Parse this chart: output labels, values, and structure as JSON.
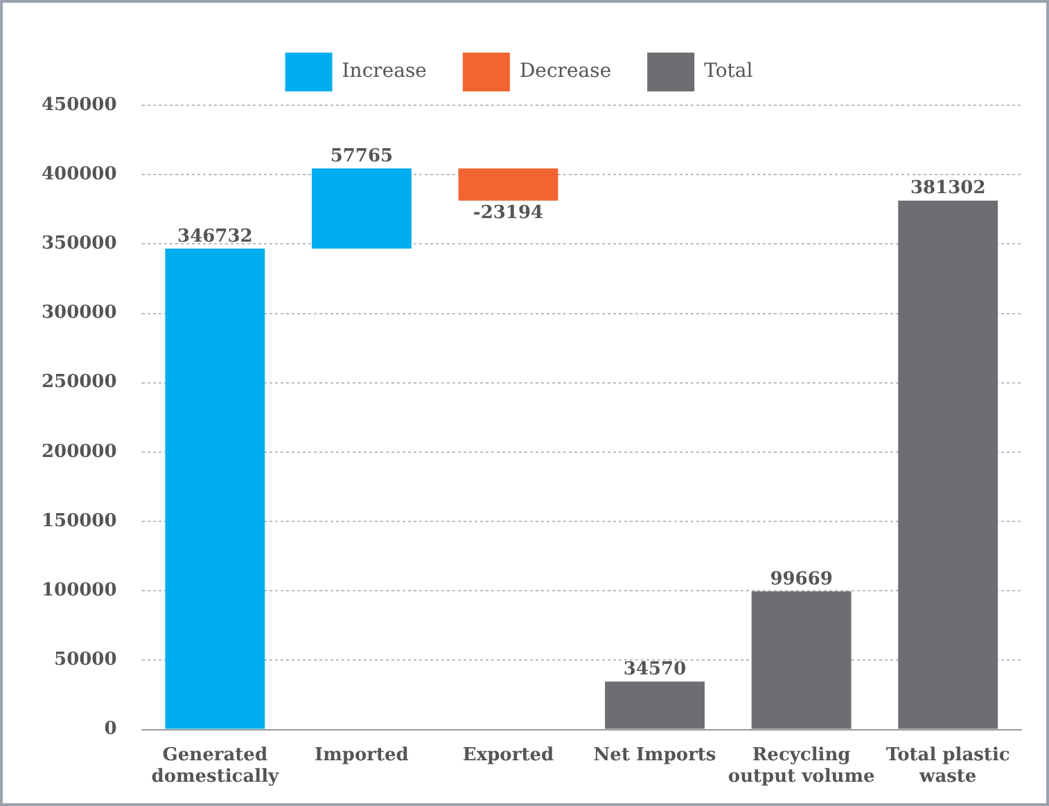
{
  "chart_data": {
    "type": "bar",
    "categories": [
      "Generated domestically",
      "Imported",
      "Exported",
      "Net Imports",
      "Recycling output volume",
      "Total plastic waste"
    ],
    "series": [
      {
        "name": "Increase",
        "color": "#00aeef",
        "values": [
          346732,
          57765,
          null,
          null,
          null,
          null
        ],
        "base": [
          0,
          346732,
          null,
          null,
          null,
          null
        ]
      },
      {
        "name": "Decrease",
        "color": "#f26531",
        "values": [
          null,
          null,
          -23194,
          null,
          null,
          null
        ],
        "base": [
          null,
          null,
          404497,
          null,
          null,
          null
        ]
      },
      {
        "name": "Total",
        "color": "#6d6e71",
        "values": [
          null,
          null,
          null,
          34570,
          99669,
          381302
        ],
        "base": [
          null,
          null,
          null,
          0,
          0,
          0
        ]
      }
    ],
    "ylim": [
      0,
      450000
    ],
    "yticks": [
      0,
      50000,
      100000,
      150000,
      200000,
      250000,
      300000,
      350000,
      400000,
      450000
    ],
    "grid": "y",
    "legend": "top",
    "data_labels": true
  }
}
